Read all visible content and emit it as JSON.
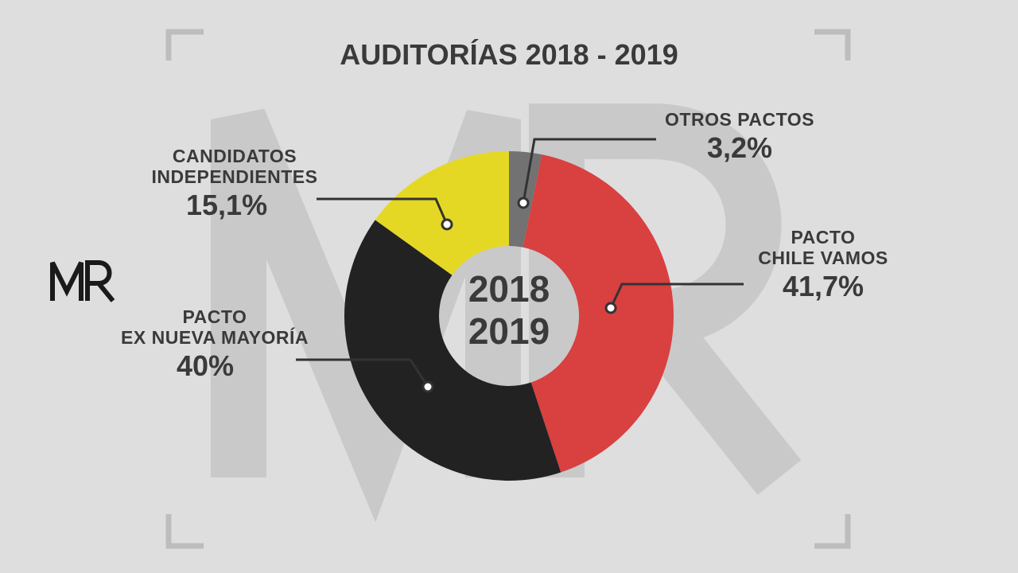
{
  "chart_data": {
    "type": "pie",
    "donut": true,
    "title": "AUDITORÍAS 2018 - 2019",
    "center_label": [
      "2018",
      "2019"
    ],
    "slices": [
      {
        "name_lines": [
          "OTROS PACTOS"
        ],
        "value": 3.2,
        "label": "3,2%",
        "color": "#727272"
      },
      {
        "name_lines": [
          "PACTO",
          "CHILE VAMOS"
        ],
        "value": 41.7,
        "label": "41,7%",
        "color": "#d94040"
      },
      {
        "name_lines": [
          "PACTO",
          "EX NUEVA MAYORÍA"
        ],
        "value": 40,
        "label": "40%",
        "color": "#222222"
      },
      {
        "name_lines": [
          "CANDIDATOS",
          "INDEPENDIENTES"
        ],
        "value": 15.1,
        "label": "15,1%",
        "color": "#e5d824"
      }
    ],
    "start": "12 o'clock",
    "direction": "clockwise"
  },
  "branding": {
    "logo": "MR",
    "watermark": "MR"
  }
}
